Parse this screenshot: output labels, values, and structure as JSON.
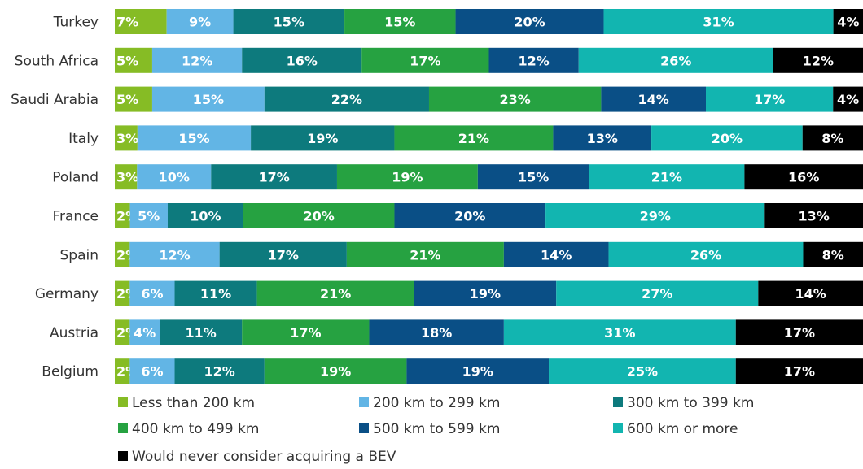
{
  "chart_data": {
    "type": "bar",
    "orientation": "horizontal",
    "stacked": true,
    "categories": [
      "Turkey",
      "South Africa",
      "Saudi Arabia",
      "Italy",
      "Poland",
      "France",
      "Spain",
      "Germany",
      "Austria",
      "Belgium"
    ],
    "series": [
      {
        "name": "Less than 200 km",
        "color": "#86bc25",
        "values": [
          7,
          5,
          5,
          3,
          3,
          2,
          2,
          2,
          2,
          2
        ]
      },
      {
        "name": "200 km to 299 km",
        "color": "#62b5e5",
        "values": [
          9,
          12,
          15,
          15,
          10,
          5,
          12,
          6,
          4,
          6
        ]
      },
      {
        "name": "300 km to 399 km",
        "color": "#0d7a7d",
        "values": [
          15,
          16,
          22,
          19,
          17,
          10,
          17,
          11,
          11,
          12
        ]
      },
      {
        "name": "400 km to 499 km",
        "color": "#26a241",
        "values": [
          15,
          17,
          23,
          21,
          19,
          20,
          21,
          21,
          17,
          19
        ]
      },
      {
        "name": "500 km to 599 km",
        "color": "#0a4f86",
        "values": [
          20,
          12,
          14,
          13,
          15,
          20,
          14,
          19,
          18,
          19
        ]
      },
      {
        "name": "600 km or more",
        "color": "#12b5b0",
        "values": [
          31,
          26,
          17,
          20,
          21,
          29,
          26,
          27,
          31,
          25
        ]
      },
      {
        "name": "Would never consider acquiring a BEV",
        "color": "#000000",
        "values": [
          4,
          12,
          4,
          8,
          16,
          13,
          8,
          14,
          17,
          17
        ]
      }
    ],
    "value_suffix": "%",
    "legend_position": "bottom",
    "grid": false
  }
}
